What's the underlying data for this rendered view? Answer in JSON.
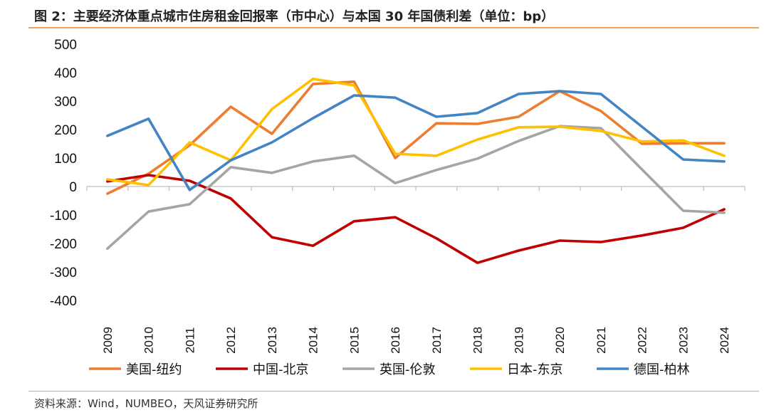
{
  "header": {
    "title": "图 2：主要经济体重点城市住房租金回报率（市中心）与本国 30 年国债利差（单位：bp）"
  },
  "footer": {
    "source": "资料来源：Wind，NUMBEO，天风证券研究所"
  },
  "chart_data": {
    "type": "line",
    "title": "图 2：主要经济体重点城市住房租金回报率（市中心）与本国 30 年国债利差（单位：bp）",
    "x": [
      "2009",
      "2010",
      "2011",
      "2012",
      "2013",
      "2014",
      "2015",
      "2016",
      "2017",
      "2018",
      "2019",
      "2020",
      "2021",
      "2022",
      "2023",
      "2024"
    ],
    "ylim": [
      -400,
      500
    ],
    "yticks": [
      500,
      400,
      300,
      200,
      100,
      0,
      -100,
      -200,
      -300,
      -400
    ],
    "grid": false,
    "legend_position": "bottom",
    "series": [
      {
        "name": "美国-纽约",
        "color": "#ed7d31",
        "values": [
          -25,
          45,
          145,
          280,
          185,
          360,
          368,
          100,
          222,
          220,
          245,
          335,
          265,
          150,
          152,
          152
        ]
      },
      {
        "name": "中国-北京",
        "color": "#c00000",
        "values": [
          18,
          40,
          20,
          -42,
          -178,
          -208,
          -122,
          -108,
          -182,
          -268,
          -225,
          -190,
          -195,
          -172,
          -145,
          -80
        ]
      },
      {
        "name": "英国-伦敦",
        "color": "#a5a5a5",
        "values": [
          -218,
          -88,
          -62,
          68,
          48,
          88,
          108,
          12,
          58,
          98,
          160,
          212,
          205,
          60,
          -85,
          -92
        ]
      },
      {
        "name": "日本-东京",
        "color": "#ffc000",
        "values": [
          25,
          5,
          155,
          92,
          272,
          378,
          355,
          115,
          108,
          165,
          208,
          210,
          195,
          158,
          162,
          108
        ]
      },
      {
        "name": "德国-柏林",
        "color": "#4285c4",
        "values": [
          178,
          238,
          -12,
          92,
          155,
          240,
          320,
          312,
          245,
          258,
          325,
          335,
          325,
          210,
          95,
          88
        ]
      }
    ]
  }
}
